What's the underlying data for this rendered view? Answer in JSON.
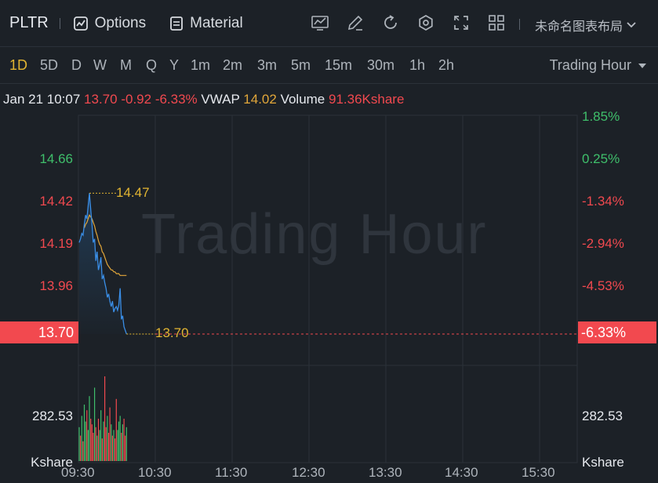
{
  "toolbar": {
    "symbol": "PLTR",
    "options_label": "Options",
    "material_label": "Material",
    "icons": [
      "indicator-icon",
      "draw-icon",
      "reset-icon",
      "settings-icon",
      "fullscreen-icon",
      "layout-grid-icon"
    ],
    "layout_name": "未命名图表布局"
  },
  "periods": {
    "items": [
      "1D",
      "5D",
      "D",
      "W",
      "M",
      "Q",
      "Y",
      "1m",
      "2m",
      "3m",
      "5m",
      "15m",
      "30m",
      "1h",
      "2h"
    ],
    "active": "1D",
    "session_label": "Trading Hour"
  },
  "info": {
    "time": "Jan 21 10:07",
    "price": "13.70",
    "change": "-0.92",
    "change_pct": "-6.33%",
    "vwap_label": "VWAP",
    "vwap": "14.02",
    "volume_label": "Volume",
    "volume": "91.36Kshare"
  },
  "watermark": "Trading Hour",
  "axis": {
    "left_ticks": [
      "14.66",
      "14.42",
      "14.19",
      "13.96"
    ],
    "right_ticks": [
      "1.85%",
      "0.25%",
      "-1.34%",
      "-2.94%",
      "-4.53%"
    ],
    "price_tag": "13.70",
    "pct_tag": "-6.33%",
    "volume_tick": "282.53",
    "volume_unit": "Kshare",
    "x_ticks": [
      "09:30",
      "10:30",
      "11:30",
      "12:30",
      "13:30",
      "14:30",
      "15:30"
    ]
  },
  "annotations": {
    "high": "14.47",
    "last": "13.70"
  },
  "colors": {
    "up": "#3fbf6b",
    "down": "#f1494f",
    "price_line": "#3a8ee6",
    "vwap_line": "#e2a73a",
    "accent": "#e2b532"
  },
  "chart_data": {
    "type": "line",
    "x_minutes_from_open": [
      0,
      1,
      2,
      3,
      4,
      5,
      6,
      7,
      8,
      9,
      10,
      11,
      12,
      13,
      14,
      15,
      16,
      17,
      18,
      19,
      20,
      21,
      22,
      23,
      24,
      25,
      26,
      27,
      28,
      29,
      30,
      31,
      32,
      33,
      34,
      35,
      36,
      37
    ],
    "price": [
      14.2,
      14.22,
      14.25,
      14.24,
      14.3,
      14.35,
      14.33,
      14.4,
      14.47,
      14.38,
      14.3,
      14.2,
      14.22,
      14.1,
      14.15,
      14.05,
      14.08,
      14.12,
      14.0,
      14.02,
      13.98,
      13.95,
      13.9,
      13.92,
      13.88,
      13.85,
      13.88,
      13.82,
      13.84,
      13.85,
      13.83,
      13.86,
      13.95,
      13.78,
      13.8,
      13.74,
      13.72,
      13.7
    ],
    "vwap": [
      14.2,
      14.22,
      14.24,
      14.26,
      14.28,
      14.3,
      14.31,
      14.33,
      14.35,
      14.34,
      14.33,
      14.31,
      14.29,
      14.26,
      14.24,
      14.21,
      14.19,
      14.18,
      14.15,
      14.14,
      14.12,
      14.1,
      14.08,
      14.07,
      14.06,
      14.05,
      14.05,
      14.04,
      14.04,
      14.03,
      14.03,
      14.03,
      14.02,
      14.02,
      14.02,
      14.02,
      14.02,
      14.02
    ],
    "volume": [
      120,
      90,
      160,
      70,
      200,
      140,
      180,
      110,
      230,
      150,
      130,
      100,
      260,
      120,
      90,
      150,
      110,
      180,
      80,
      140,
      300,
      120,
      160,
      100,
      190,
      130,
      90,
      110,
      80,
      220,
      110,
      140,
      160,
      100,
      130,
      150,
      90,
      120
    ],
    "volume_up": [
      true,
      false,
      true,
      false,
      true,
      true,
      false,
      true,
      true,
      false,
      false,
      false,
      true,
      false,
      true,
      false,
      true,
      true,
      false,
      true,
      false,
      false,
      true,
      false,
      false,
      true,
      false,
      true,
      false,
      false,
      true,
      true,
      true,
      false,
      true,
      false,
      false,
      true
    ],
    "ylim": [
      13.7,
      14.66
    ]
  }
}
